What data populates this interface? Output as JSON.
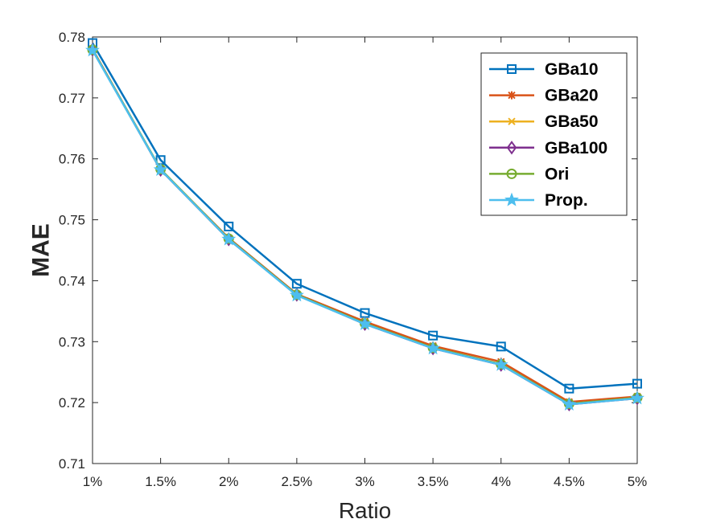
{
  "chart_data": {
    "type": "line",
    "title": "",
    "xlabel": "Ratio",
    "ylabel": "MAE",
    "categories": [
      "1%",
      "1.5%",
      "2%",
      "2.5%",
      "3%",
      "3.5%",
      "4%",
      "4.5%",
      "5%"
    ],
    "y_ticks": [
      "0.71",
      "0.72",
      "0.73",
      "0.74",
      "0.75",
      "0.76",
      "0.77",
      "0.78"
    ],
    "ylim": [
      0.71,
      0.78
    ],
    "grid": false,
    "legend_position": "top-right",
    "series": [
      {
        "name": "GBa10",
        "color": "#0072BD",
        "marker": "square",
        "values": [
          0.779,
          0.7598,
          0.7489,
          0.7395,
          0.7347,
          0.731,
          0.7292,
          0.7223,
          0.7231
        ]
      },
      {
        "name": "GBa20",
        "color": "#D95319",
        "marker": "asterisk",
        "values": [
          0.778,
          0.7582,
          0.747,
          0.7378,
          0.7333,
          0.7293,
          0.7267,
          0.7201,
          0.721
        ]
      },
      {
        "name": "GBa50",
        "color": "#EDB120",
        "marker": "x",
        "values": [
          0.7779,
          0.7582,
          0.7468,
          0.7377,
          0.7329,
          0.729,
          0.7262,
          0.7198,
          0.7208
        ]
      },
      {
        "name": "GBa100",
        "color": "#7E2F8E",
        "marker": "diamond",
        "values": [
          0.7779,
          0.7582,
          0.7468,
          0.7377,
          0.7329,
          0.7289,
          0.7262,
          0.7197,
          0.7207
        ]
      },
      {
        "name": "Ori",
        "color": "#77AC30",
        "marker": "circle",
        "values": [
          0.7779,
          0.7583,
          0.7469,
          0.7377,
          0.733,
          0.729,
          0.7263,
          0.7198,
          0.7208
        ]
      },
      {
        "name": "Prop.",
        "color": "#4DBEEE",
        "marker": "star",
        "values": [
          0.7778,
          0.7582,
          0.7468,
          0.7376,
          0.7329,
          0.7289,
          0.7262,
          0.7197,
          0.7207
        ]
      }
    ]
  }
}
